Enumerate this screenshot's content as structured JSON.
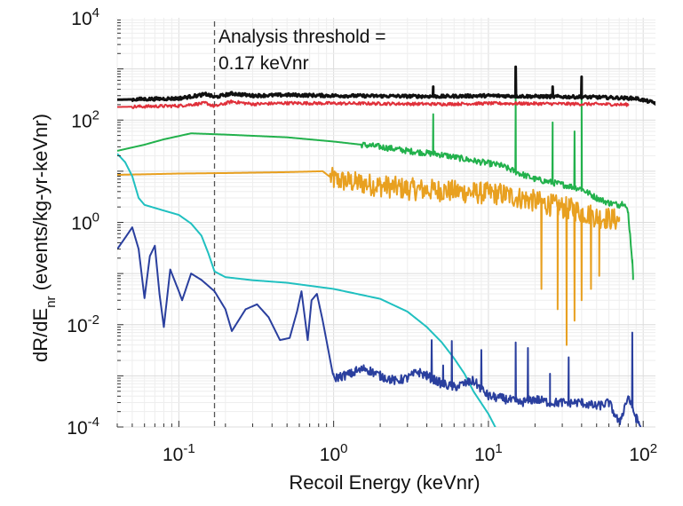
{
  "chart_data": {
    "type": "line",
    "title": "",
    "xlabel": "Recoil Energy (keVnr)",
    "ylabel_parts": {
      "main": "dR/dE",
      "sub": "nr",
      "rest": " (events/kg-yr-keVnr)"
    },
    "xscale": "log",
    "yscale": "log",
    "xlim": [
      0.04,
      120
    ],
    "ylim": [
      0.0001,
      10000
    ],
    "x_ticks": [
      {
        "value": 0.1,
        "base": "10",
        "exp": "-1"
      },
      {
        "value": 1,
        "base": "10",
        "exp": "0"
      },
      {
        "value": 10,
        "base": "10",
        "exp": "1"
      },
      {
        "value": 100,
        "base": "10",
        "exp": "2"
      }
    ],
    "y_ticks": [
      {
        "value": 0.0001,
        "base": "10",
        "exp": "-4"
      },
      {
        "value": 0.01,
        "base": "10",
        "exp": "-2"
      },
      {
        "value": 1,
        "base": "10",
        "exp": "0"
      },
      {
        "value": 100,
        "base": "10",
        "exp": "2"
      },
      {
        "value": 10000,
        "base": "10",
        "exp": "4"
      }
    ],
    "grid": "minor-log",
    "threshold": {
      "x": 0.17,
      "label_line1": "Analysis threshold =",
      "label_line2": "0.17 keVnr"
    },
    "series": [
      {
        "color": "#e8a020",
        "points": [
          [
            0.04,
            8.5
          ],
          [
            0.06,
            8.7
          ],
          [
            0.1,
            9
          ],
          [
            0.2,
            9.2
          ],
          [
            0.5,
            9.6
          ],
          [
            0.85,
            10
          ],
          [
            1.0,
            6.8
          ],
          [
            1.5,
            5.8
          ],
          [
            2,
            5.2
          ],
          [
            3,
            4.5
          ],
          [
            5,
            4.2
          ],
          [
            8,
            3.8
          ],
          [
            12,
            3.6
          ],
          [
            18,
            2.8
          ],
          [
            25,
            2.2
          ],
          [
            35,
            1.8
          ],
          [
            50,
            1.3
          ],
          [
            70,
            1.1
          ]
        ],
        "noise_from": 0.95,
        "noise_amp": 0.22,
        "spikes": [
          [
            22,
            0.05
          ],
          [
            28,
            0.02
          ],
          [
            32,
            0.004
          ],
          [
            36,
            0.012
          ],
          [
            40,
            0.03
          ],
          [
            46,
            0.05
          ],
          [
            52,
            0.09
          ]
        ]
      },
      {
        "color": "#22b14c",
        "points": [
          [
            0.04,
            25
          ],
          [
            0.06,
            33
          ],
          [
            0.08,
            42
          ],
          [
            0.12,
            55
          ],
          [
            0.2,
            52
          ],
          [
            0.5,
            46
          ],
          [
            1,
            38
          ],
          [
            2,
            30
          ],
          [
            3,
            25
          ],
          [
            5,
            21
          ],
          [
            8,
            16
          ],
          [
            12,
            13
          ],
          [
            16,
            9
          ],
          [
            20,
            7
          ],
          [
            30,
            5.5
          ],
          [
            40,
            4.5
          ],
          [
            50,
            3
          ],
          [
            60,
            2.4
          ],
          [
            70,
            2.2
          ],
          [
            75,
            2.5
          ],
          [
            80,
            1.5
          ],
          [
            85,
            0.18
          ],
          [
            86,
            0.08
          ]
        ],
        "noise_from": 1.5,
        "noise_amp": 0.06,
        "spikes": [
          [
            4.4,
            130
          ],
          [
            15,
            270
          ],
          [
            26,
            90
          ],
          [
            36,
            60
          ],
          [
            40,
            260
          ]
        ]
      },
      {
        "color": "#e0303a",
        "points": [
          [
            0.04,
            180
          ],
          [
            0.1,
            190
          ],
          [
            0.15,
            215
          ],
          [
            0.17,
            185
          ],
          [
            0.22,
            230
          ],
          [
            0.3,
            205
          ],
          [
            0.5,
            215
          ],
          [
            1,
            212
          ],
          [
            2,
            210
          ],
          [
            5,
            205
          ],
          [
            10,
            212
          ],
          [
            20,
            210
          ],
          [
            50,
            205
          ],
          [
            80,
            200
          ]
        ],
        "noise_from": 0.05,
        "noise_amp": 0.03,
        "spikes": []
      },
      {
        "color": "#111111",
        "points": [
          [
            0.04,
            250
          ],
          [
            0.1,
            265
          ],
          [
            0.15,
            320
          ],
          [
            0.17,
            280
          ],
          [
            0.22,
            330
          ],
          [
            0.3,
            300
          ],
          [
            0.5,
            310
          ],
          [
            1,
            300
          ],
          [
            2,
            295
          ],
          [
            5,
            290
          ],
          [
            10,
            300
          ],
          [
            20,
            290
          ],
          [
            50,
            280
          ],
          [
            90,
            265
          ],
          [
            120,
            215
          ]
        ],
        "noise_from": 0.05,
        "noise_amp": 0.03,
        "spikes": [
          [
            4.4,
            450
          ],
          [
            15,
            1100
          ],
          [
            26,
            450
          ],
          [
            40,
            700
          ]
        ]
      },
      {
        "color": "#20c0c0",
        "points": [
          [
            0.04,
            22
          ],
          [
            0.045,
            15
          ],
          [
            0.05,
            8
          ],
          [
            0.055,
            3
          ],
          [
            0.06,
            2.2
          ],
          [
            0.08,
            1.7
          ],
          [
            0.1,
            1.4
          ],
          [
            0.12,
            0.95
          ],
          [
            0.14,
            0.55
          ],
          [
            0.155,
            0.25
          ],
          [
            0.17,
            0.11
          ],
          [
            0.2,
            0.085
          ],
          [
            0.3,
            0.074
          ],
          [
            0.5,
            0.066
          ],
          [
            1,
            0.05
          ],
          [
            2,
            0.032
          ],
          [
            3,
            0.018
          ],
          [
            4,
            0.009
          ],
          [
            5,
            0.0045
          ],
          [
            6,
            0.0022
          ],
          [
            7,
            0.0011
          ],
          [
            8,
            0.0005
          ],
          [
            10,
            0.00018
          ],
          [
            11.5,
            8e-05
          ]
        ],
        "noise_from": 1000,
        "noise_amp": 0,
        "spikes": []
      },
      {
        "color": "#2a3f9e",
        "points": [
          [
            0.04,
            0.3
          ],
          [
            0.045,
            0.5
          ],
          [
            0.05,
            0.8
          ],
          [
            0.055,
            0.3
          ],
          [
            0.06,
            0.033
          ],
          [
            0.065,
            0.22
          ],
          [
            0.07,
            0.35
          ],
          [
            0.075,
            0.04
          ],
          [
            0.08,
            0.009
          ],
          [
            0.088,
            0.12
          ],
          [
            0.1,
            0.045
          ],
          [
            0.105,
            0.03
          ],
          [
            0.12,
            0.1
          ],
          [
            0.14,
            0.075
          ],
          [
            0.17,
            0.045
          ],
          [
            0.2,
            0.02
          ],
          [
            0.22,
            0.0075
          ],
          [
            0.27,
            0.02
          ],
          [
            0.32,
            0.025
          ],
          [
            0.38,
            0.014
          ],
          [
            0.45,
            0.005
          ],
          [
            0.52,
            0.0055
          ],
          [
            0.58,
            0.018
          ],
          [
            0.62,
            0.045
          ],
          [
            0.68,
            0.005
          ],
          [
            0.72,
            0.03
          ],
          [
            0.78,
            0.04
          ],
          [
            0.85,
            0.012
          ],
          [
            1,
            0.0009
          ],
          [
            1.3,
            0.0011
          ],
          [
            1.6,
            0.0014
          ],
          [
            2,
            0.001
          ],
          [
            2.5,
            0.0008
          ],
          [
            3,
            0.0009
          ],
          [
            3.5,
            0.0012
          ],
          [
            4,
            0.001
          ],
          [
            5,
            0.0007
          ],
          [
            6,
            0.0006
          ],
          [
            8,
            0.0008
          ],
          [
            10,
            0.0004
          ],
          [
            13,
            0.00035
          ],
          [
            16,
            0.0003
          ],
          [
            20,
            0.00035
          ],
          [
            25,
            0.0003
          ],
          [
            30,
            0.0003
          ],
          [
            40,
            0.0003
          ],
          [
            50,
            0.00025
          ],
          [
            60,
            0.0003
          ],
          [
            70,
            0.00012
          ],
          [
            80,
            0.0004
          ],
          [
            90,
            0.00015
          ],
          [
            100,
            8e-05
          ]
        ],
        "noise_from": 1.0,
        "noise_amp": 0.09,
        "spikes": [
          [
            1.4,
            0.0015
          ],
          [
            4.3,
            0.005
          ],
          [
            5.1,
            0.0016
          ],
          [
            5.8,
            0.0048
          ],
          [
            9,
            0.0032
          ],
          [
            15,
            0.0045
          ],
          [
            18,
            0.0035
          ],
          [
            25,
            0.0011
          ],
          [
            33,
            0.0023
          ],
          [
            85,
            0.007
          ]
        ]
      }
    ]
  }
}
